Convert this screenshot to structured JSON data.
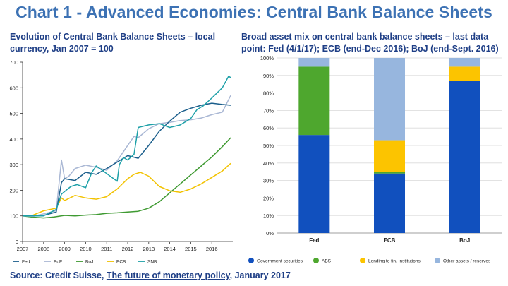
{
  "main_title": "Chart 1 - Advanced Economies: Central Bank Balance Sheets",
  "source": {
    "prefix": "Source: Credit Suisse, ",
    "link_text": "The future of monetary policy",
    "suffix": ", January 2017"
  },
  "colors": {
    "Fed": "#1c5f8c",
    "BoE": "#a9b7d4",
    "BoJ": "#3f9a32",
    "ECB": "#f2c200",
    "SNB": "#1da0a8",
    "Government securities": "#1150be",
    "ABS": "#4ea72e",
    "Lending to fin. Institutions": "#fcc400",
    "Other assets / reserves": "#97b6de"
  },
  "chart_data": [
    {
      "type": "line",
      "title": "Evolution of Central Bank Balance Sheets – local currency, Jan 2007 = 100",
      "xlabel": "",
      "ylabel": "",
      "xlim": [
        2007,
        2017
      ],
      "ylim": [
        0,
        700
      ],
      "x_ticks": [
        "2007",
        "2008",
        "2009",
        "2010",
        "2011",
        "2012",
        "2013",
        "2014",
        "2015",
        "2016"
      ],
      "y_ticks": [
        "0",
        "100",
        "200",
        "300",
        "400",
        "500",
        "600",
        "700"
      ],
      "grid": false,
      "legend_position": "bottom",
      "series": [
        {
          "name": "Fed",
          "x": [
            2007.0,
            2008.0,
            2008.6,
            2008.85,
            2009.0,
            2009.5,
            2010.0,
            2010.5,
            2011.0,
            2011.5,
            2012.0,
            2012.5,
            2013.0,
            2013.5,
            2014.0,
            2014.5,
            2015.0,
            2015.5,
            2016.0,
            2016.5,
            2016.9
          ],
          "y": [
            100,
            102,
            115,
            230,
            245,
            238,
            270,
            262,
            285,
            310,
            335,
            325,
            375,
            430,
            470,
            505,
            520,
            532,
            540,
            535,
            532
          ]
        },
        {
          "name": "BoE",
          "x": [
            2007.0,
            2007.5,
            2008.0,
            2008.6,
            2008.85,
            2009.0,
            2009.2,
            2009.5,
            2010.0,
            2010.5,
            2011.0,
            2011.5,
            2012.0,
            2012.3,
            2012.5,
            2013.0,
            2013.5,
            2014.0,
            2014.5,
            2015.0,
            2015.5,
            2016.0,
            2016.5,
            2016.9
          ],
          "y": [
            100,
            98,
            108,
            120,
            318,
            245,
            255,
            285,
            298,
            290,
            278,
            315,
            375,
            410,
            405,
            440,
            460,
            465,
            472,
            475,
            482,
            495,
            505,
            570
          ]
        },
        {
          "name": "BoJ",
          "x": [
            2007.0,
            2007.5,
            2008.0,
            2008.5,
            2009.0,
            2009.5,
            2010.0,
            2010.5,
            2011.0,
            2011.5,
            2012.0,
            2012.5,
            2013.0,
            2013.5,
            2014.0,
            2014.5,
            2015.0,
            2015.5,
            2016.0,
            2016.5,
            2016.9
          ],
          "y": [
            100,
            95,
            92,
            96,
            102,
            100,
            103,
            105,
            110,
            112,
            115,
            118,
            130,
            155,
            190,
            225,
            260,
            295,
            330,
            370,
            405
          ]
        },
        {
          "name": "ECB",
          "x": [
            2007.0,
            2007.5,
            2008.0,
            2008.6,
            2008.85,
            2009.0,
            2009.5,
            2010.0,
            2010.5,
            2011.0,
            2011.5,
            2012.0,
            2012.3,
            2012.6,
            2013.0,
            2013.5,
            2014.0,
            2014.5,
            2015.0,
            2015.5,
            2016.0,
            2016.5,
            2016.9
          ],
          "y": [
            100,
            103,
            120,
            130,
            170,
            160,
            180,
            170,
            165,
            175,
            205,
            245,
            262,
            270,
            255,
            215,
            198,
            192,
            205,
            225,
            250,
            275,
            305
          ]
        },
        {
          "name": "SNB",
          "x": [
            2007.0,
            2008.0,
            2008.6,
            2008.85,
            2009.0,
            2009.3,
            2009.6,
            2010.0,
            2010.3,
            2010.5,
            2011.0,
            2011.5,
            2011.6,
            2011.8,
            2012.0,
            2012.3,
            2012.5,
            2013.0,
            2013.5,
            2014.0,
            2014.5,
            2015.0,
            2015.3,
            2015.6,
            2016.0,
            2016.5,
            2016.8,
            2016.9
          ],
          "y": [
            100,
            100,
            125,
            185,
            195,
            215,
            222,
            210,
            270,
            295,
            265,
            235,
            300,
            328,
            318,
            340,
            445,
            455,
            460,
            445,
            455,
            480,
            515,
            530,
            560,
            600,
            645,
            640
          ]
        }
      ]
    },
    {
      "type": "bar",
      "stacked": true,
      "title": "Broad asset mix on central bank balance sheets – last data point: Fed (4/1/17); ECB (end-Dec 2016); BoJ (end-Sept. 2016)",
      "xlabel": "",
      "ylabel": "",
      "ylim": [
        0,
        100
      ],
      "y_ticks": [
        "0%",
        "10%",
        "20%",
        "30%",
        "40%",
        "50%",
        "60%",
        "70%",
        "80%",
        "90%",
        "100%"
      ],
      "grid": true,
      "legend_position": "bottom",
      "categories": [
        "Fed",
        "ECB",
        "BoJ"
      ],
      "series": [
        {
          "name": "Government securities",
          "values": [
            56,
            34,
            87
          ]
        },
        {
          "name": "ABS",
          "values": [
            39,
            1,
            0
          ]
        },
        {
          "name": "Lending to fin. Institutions",
          "values": [
            0,
            18,
            8
          ]
        },
        {
          "name": "Other assets / reserves",
          "values": [
            5,
            47,
            5
          ]
        }
      ]
    }
  ]
}
